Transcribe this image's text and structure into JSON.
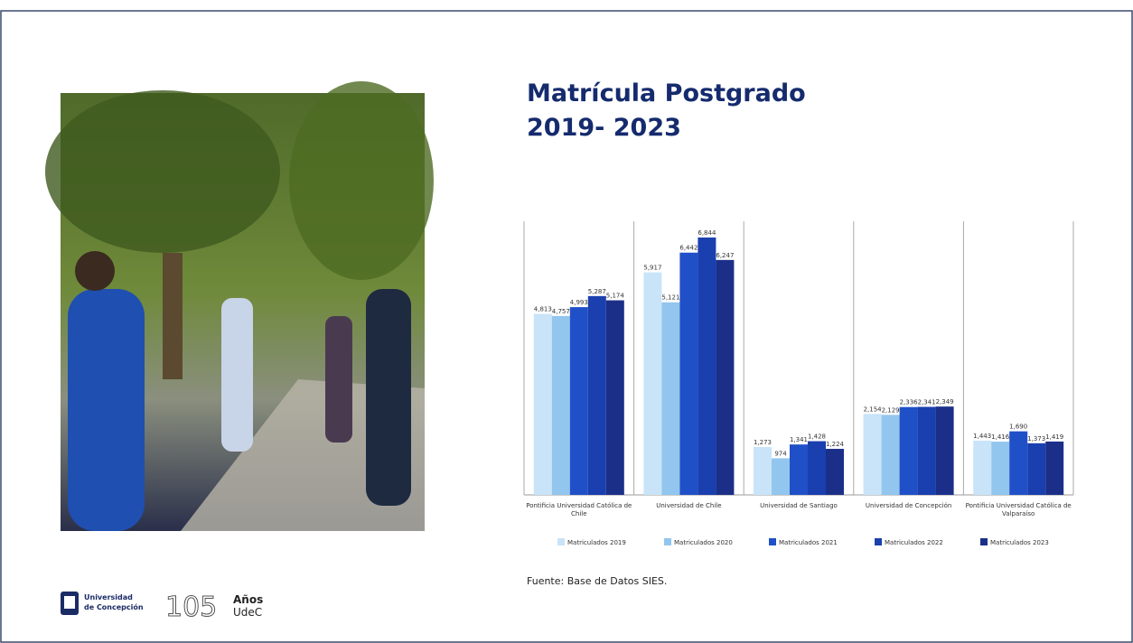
{
  "slide": {
    "title_lines": [
      "Matrícula Postgrado",
      "2019- 2023"
    ],
    "source": "Fuente: Base de Datos SIES.",
    "logo_left": [
      "Universidad",
      "de Concepción"
    ],
    "logo_right_number": "105",
    "logo_right": [
      "Años",
      "UdeC"
    ]
  },
  "chart_data": {
    "type": "bar",
    "categories": [
      "Pontificia Universidad Católica de Chile",
      "Universidad de Chile",
      "Universidad de Santiago",
      "Universidad de Concepción",
      "Pontificia Universidad Católica de Valparaíso"
    ],
    "series": [
      {
        "name": "Matriculados 2019",
        "color": "#c9e4f8",
        "values": [
          4813,
          5917,
          1273,
          2154,
          1443
        ],
        "value_labels": [
          "4,813",
          "5,917",
          "1,273",
          "2,154",
          "1,443"
        ]
      },
      {
        "name": "Matriculados 2020",
        "color": "#92c6ee",
        "values": [
          4757,
          5121,
          974,
          2129,
          1416
        ],
        "value_labels": [
          "4,757",
          "5,121",
          "974",
          "2,129",
          "1,416"
        ]
      },
      {
        "name": "Matriculados 2021",
        "color": "#2050c8",
        "values": [
          4993,
          6442,
          1341,
          2336,
          1690
        ],
        "value_labels": [
          "4,993",
          "6,442",
          "1,341",
          "2,336",
          "1,690"
        ]
      },
      {
        "name": "Matriculados 2022",
        "color": "#1a3fae",
        "values": [
          5287,
          6844,
          1428,
          2341,
          1373
        ],
        "value_labels": [
          "5,287",
          "6,844",
          "1,428",
          "2,341",
          "1,373"
        ]
      },
      {
        "name": "Matriculados 2023",
        "color": "#1b2f88",
        "values": [
          5174,
          6247,
          1224,
          2349,
          1419
        ],
        "value_labels": [
          "5,174",
          "6,247",
          "1,224",
          "2,349",
          "1,419"
        ]
      }
    ]
  }
}
